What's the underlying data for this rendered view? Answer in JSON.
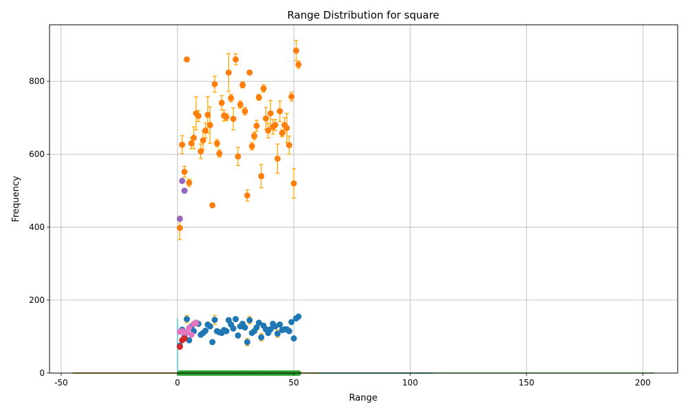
{
  "chart_data": {
    "type": "scatter",
    "title": "Range Distribution for square",
    "xlabel": "Range",
    "ylabel": "Frequency",
    "xlim": [
      -55,
      215
    ],
    "ylim": [
      0,
      955
    ],
    "xticks": [
      -50,
      0,
      50,
      100,
      150,
      200
    ],
    "yticks": [
      0,
      200,
      400,
      600,
      800
    ],
    "grid": true,
    "legend": "none",
    "colors": {
      "orange": "#ff7f0e",
      "blue": "#1f77b4",
      "purple": "#9467bd",
      "pink": "#e377c2",
      "red": "#d62728",
      "green": "#2ca02c",
      "cyan": "#17becf",
      "errorbar": "#ffa500"
    },
    "series": [
      {
        "color_key": "orange",
        "errorbars": true,
        "points": [
          [
            1,
            398,
            32
          ],
          [
            2,
            626,
            25
          ],
          [
            3,
            552,
            15
          ],
          [
            4,
            860,
            0
          ],
          [
            5,
            522,
            10
          ],
          [
            6,
            630,
            15
          ],
          [
            7,
            645,
            30
          ],
          [
            8,
            712,
            45
          ],
          [
            9,
            705,
            15
          ],
          [
            10,
            608,
            20
          ],
          [
            11,
            638,
            25
          ],
          [
            12,
            665,
            20
          ],
          [
            13,
            708,
            50
          ],
          [
            14,
            680,
            50
          ],
          [
            15,
            460,
            0
          ],
          [
            16,
            792,
            22
          ],
          [
            17,
            630,
            10
          ],
          [
            18,
            602,
            10
          ],
          [
            19,
            741,
            20
          ],
          [
            20,
            706,
            15
          ],
          [
            21,
            702,
            10
          ],
          [
            22,
            824,
            52
          ],
          [
            23,
            754,
            10
          ],
          [
            24,
            697,
            30
          ],
          [
            25,
            860,
            15
          ],
          [
            26,
            594,
            25
          ],
          [
            27,
            736,
            10
          ],
          [
            28,
            790,
            8
          ],
          [
            29,
            718,
            10
          ],
          [
            30,
            487,
            15
          ],
          [
            31,
            824,
            5
          ],
          [
            32,
            622,
            10
          ],
          [
            33,
            650,
            10
          ],
          [
            34,
            678,
            15
          ],
          [
            35,
            756,
            8
          ],
          [
            36,
            540,
            32
          ],
          [
            37,
            780,
            10
          ],
          [
            38,
            698,
            30
          ],
          [
            39,
            665,
            20
          ],
          [
            40,
            712,
            35
          ],
          [
            41,
            675,
            20
          ],
          [
            42,
            680,
            15
          ],
          [
            43,
            588,
            40
          ],
          [
            44,
            718,
            28
          ],
          [
            45,
            658,
            10
          ],
          [
            46,
            680,
            20
          ],
          [
            47,
            672,
            40
          ],
          [
            48,
            625,
            25
          ],
          [
            49,
            758,
            12
          ],
          [
            50,
            520,
            40
          ],
          [
            51,
            884,
            28
          ],
          [
            52,
            846,
            10
          ]
        ]
      },
      {
        "color_key": "blue",
        "errorbars": true,
        "points": [
          [
            1,
            75,
            0
          ],
          [
            2,
            119,
            0
          ],
          [
            3,
            100,
            0
          ],
          [
            4,
            148,
            10
          ],
          [
            5,
            90,
            5
          ],
          [
            6,
            128,
            5
          ],
          [
            7,
            115,
            5
          ],
          [
            8,
            138,
            5
          ],
          [
            9,
            135,
            5
          ],
          [
            10,
            105,
            5
          ],
          [
            11,
            110,
            5
          ],
          [
            12,
            116,
            5
          ],
          [
            13,
            133,
            5
          ],
          [
            14,
            128,
            5
          ],
          [
            15,
            85,
            5
          ],
          [
            16,
            146,
            12
          ],
          [
            17,
            115,
            5
          ],
          [
            18,
            112,
            5
          ],
          [
            19,
            110,
            5
          ],
          [
            20,
            118,
            5
          ],
          [
            21,
            115,
            5
          ],
          [
            22,
            145,
            5
          ],
          [
            23,
            133,
            5
          ],
          [
            24,
            122,
            5
          ],
          [
            25,
            148,
            5
          ],
          [
            26,
            103,
            5
          ],
          [
            27,
            128,
            5
          ],
          [
            28,
            135,
            5
          ],
          [
            29,
            125,
            5
          ],
          [
            30,
            85,
            10
          ],
          [
            31,
            145,
            10
          ],
          [
            32,
            110,
            5
          ],
          [
            33,
            115,
            5
          ],
          [
            34,
            125,
            5
          ],
          [
            35,
            138,
            5
          ],
          [
            36,
            98,
            10
          ],
          [
            37,
            130,
            5
          ],
          [
            38,
            120,
            5
          ],
          [
            39,
            110,
            5
          ],
          [
            40,
            120,
            5
          ],
          [
            41,
            135,
            5
          ],
          [
            42,
            128,
            5
          ],
          [
            43,
            108,
            10
          ],
          [
            44,
            133,
            5
          ],
          [
            45,
            118,
            5
          ],
          [
            46,
            120,
            5
          ],
          [
            47,
            120,
            5
          ],
          [
            48,
            115,
            5
          ],
          [
            49,
            140,
            5
          ],
          [
            50,
            95,
            5
          ],
          [
            51,
            150,
            5
          ],
          [
            52,
            155,
            5
          ]
        ]
      },
      {
        "color_key": "purple",
        "errorbars": false,
        "points": [
          [
            1,
            423
          ],
          [
            2,
            527
          ],
          [
            3,
            500
          ]
        ]
      },
      {
        "color_key": "pink",
        "errorbars": false,
        "points": [
          [
            1,
            113
          ],
          [
            2,
            115
          ],
          [
            3,
            110
          ],
          [
            4,
            112
          ],
          [
            5,
            124
          ],
          [
            6,
            105
          ],
          [
            7,
            135
          ],
          [
            8,
            137
          ]
        ]
      },
      {
        "color_key": "red",
        "errorbars": false,
        "points": [
          [
            1,
            72
          ],
          [
            2,
            90
          ],
          [
            3,
            95
          ]
        ]
      },
      {
        "color_key": "green",
        "errorbars": false,
        "x_range": [
          1,
          52
        ],
        "y": 0
      }
    ],
    "lines": [
      {
        "color_key": "blue",
        "x": [
          -45,
          110
        ],
        "y": 0
      },
      {
        "color_key": "green",
        "x": [
          -45,
          205
        ],
        "y": 0
      },
      {
        "color_key": "orange",
        "x": [
          -45,
          60
        ],
        "y": 0
      },
      {
        "color_key": "cyan",
        "x_at": 0,
        "y": [
          0,
          150
        ]
      }
    ]
  }
}
